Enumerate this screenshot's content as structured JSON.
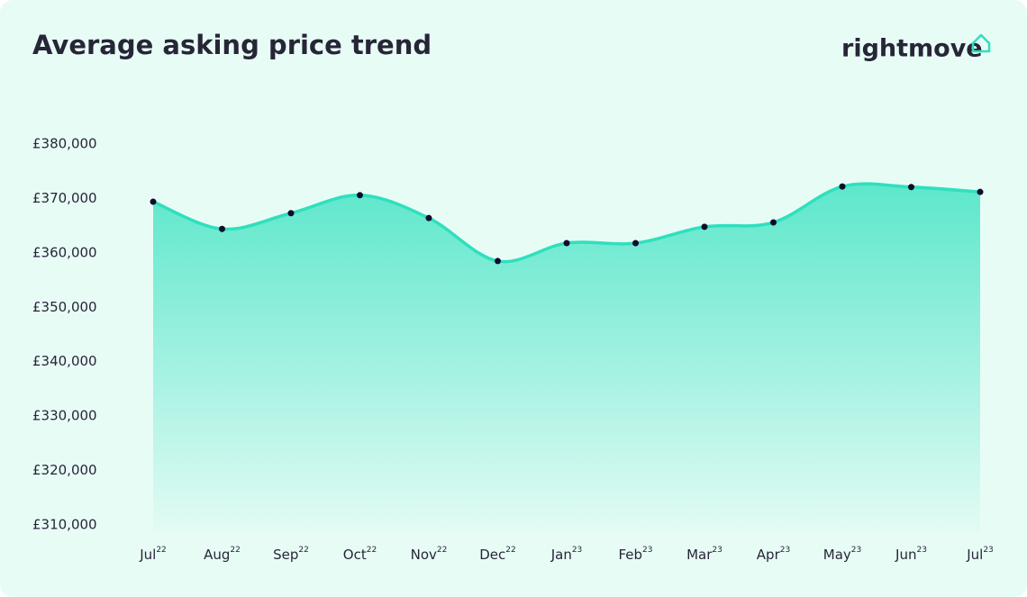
{
  "chart_data": {
    "type": "line",
    "title": "Average asking price trend",
    "logo": "rightmove",
    "categories": [
      "Jul",
      "Aug",
      "Sep",
      "Oct",
      "Nov",
      "Dec",
      "Jan",
      "Feb",
      "Mar",
      "Apr",
      "May",
      "Jun",
      "Jul"
    ],
    "category_years": [
      "22",
      "22",
      "22",
      "22",
      "22",
      "22",
      "23",
      "23",
      "23",
      "23",
      "23",
      "23",
      "23"
    ],
    "values": [
      369400,
      364400,
      367300,
      370600,
      366400,
      358500,
      361800,
      361800,
      364800,
      365600,
      372200,
      372100,
      371200
    ],
    "color": "#2ee0bd",
    "marker_color": "#0d0d2b",
    "ylim": [
      310000,
      380000
    ],
    "yticks": [
      {
        "value": 310000,
        "label": "£310,000"
      },
      {
        "value": 320000,
        "label": "£320,000"
      },
      {
        "value": 330000,
        "label": "£330,000"
      },
      {
        "value": 340000,
        "label": "£340,000"
      },
      {
        "value": 350000,
        "label": "£350,000"
      },
      {
        "value": 360000,
        "label": "£360,000"
      },
      {
        "value": 370000,
        "label": "£370,000"
      },
      {
        "value": 380000,
        "label": "£380,000"
      }
    ]
  }
}
